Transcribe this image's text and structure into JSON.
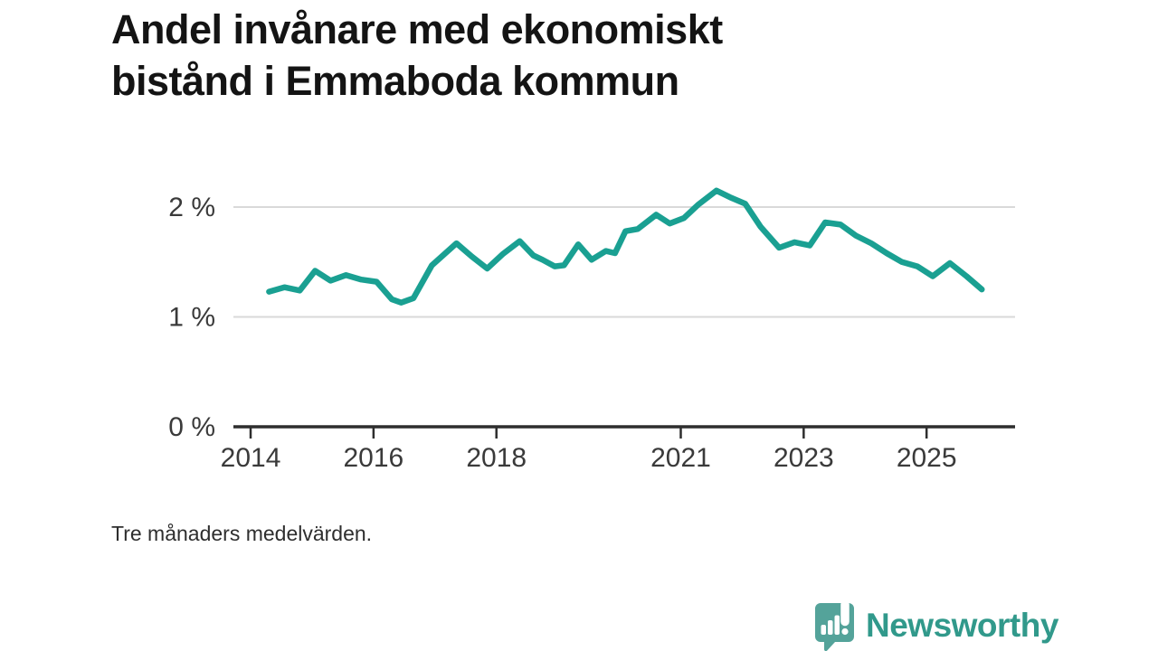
{
  "title": {
    "line1": "Andel invånare med ekonomiskt",
    "line2": "bistånd i Emmaboda kommun"
  },
  "footnote": "Tre månaders medelvärden.",
  "logo": {
    "name": "Newsworthy",
    "icon": "newsworthy-chart-bubble-icon",
    "icon_color": "#54a39a",
    "text_color": "#31998b"
  },
  "chart_data": {
    "type": "line",
    "title": "Andel invånare med ekonomiskt bistånd i Emmaboda kommun",
    "subtitle": "Tre månaders medelvärden.",
    "xlabel": "",
    "ylabel": "",
    "unit": "%",
    "grid": "horizontal gridlines at 1 % and 2 % only",
    "legend": "none",
    "x_range": [
      2013.72,
      2026.44
    ],
    "y_range": [
      0,
      2.35
    ],
    "x_ticks": [
      {
        "value": 2014,
        "label": "2014"
      },
      {
        "value": 2016,
        "label": "2016"
      },
      {
        "value": 2018,
        "label": "2018"
      },
      {
        "value": 2021,
        "label": "2021"
      },
      {
        "value": 2023,
        "label": "2023"
      },
      {
        "value": 2025,
        "label": "2025"
      }
    ],
    "y_ticks": [
      {
        "value": 0,
        "label": "0 %"
      },
      {
        "value": 1,
        "label": "1 %"
      },
      {
        "value": 2,
        "label": "2 %"
      }
    ],
    "y_gridline_values": [
      1,
      2
    ],
    "line_color": "#1aa092",
    "grid_color": "#d9d9d9",
    "axis_color": "#2e2e2e",
    "series": [
      {
        "name": "Andel invånare med ekonomiskt bistånd (%)",
        "points": [
          [
            2014.3,
            1.23
          ],
          [
            2014.55,
            1.27
          ],
          [
            2014.8,
            1.24
          ],
          [
            2015.05,
            1.42
          ],
          [
            2015.3,
            1.33
          ],
          [
            2015.55,
            1.38
          ],
          [
            2015.8,
            1.34
          ],
          [
            2016.05,
            1.32
          ],
          [
            2016.3,
            1.16
          ],
          [
            2016.45,
            1.13
          ],
          [
            2016.65,
            1.17
          ],
          [
            2016.95,
            1.47
          ],
          [
            2017.35,
            1.67
          ],
          [
            2017.6,
            1.55
          ],
          [
            2017.85,
            1.44
          ],
          [
            2018.1,
            1.57
          ],
          [
            2018.38,
            1.69
          ],
          [
            2018.6,
            1.56
          ],
          [
            2018.75,
            1.52
          ],
          [
            2018.95,
            1.46
          ],
          [
            2019.1,
            1.47
          ],
          [
            2019.33,
            1.66
          ],
          [
            2019.55,
            1.52
          ],
          [
            2019.78,
            1.6
          ],
          [
            2019.93,
            1.58
          ],
          [
            2020.1,
            1.78
          ],
          [
            2020.3,
            1.8
          ],
          [
            2020.6,
            1.93
          ],
          [
            2020.82,
            1.85
          ],
          [
            2021.05,
            1.9
          ],
          [
            2021.28,
            2.02
          ],
          [
            2021.58,
            2.15
          ],
          [
            2021.8,
            2.09
          ],
          [
            2022.05,
            2.03
          ],
          [
            2022.3,
            1.82
          ],
          [
            2022.6,
            1.63
          ],
          [
            2022.85,
            1.68
          ],
          [
            2023.1,
            1.65
          ],
          [
            2023.35,
            1.86
          ],
          [
            2023.6,
            1.84
          ],
          [
            2023.85,
            1.74
          ],
          [
            2024.1,
            1.67
          ],
          [
            2024.35,
            1.58
          ],
          [
            2024.6,
            1.5
          ],
          [
            2024.85,
            1.46
          ],
          [
            2025.1,
            1.37
          ],
          [
            2025.38,
            1.49
          ],
          [
            2025.65,
            1.37
          ],
          [
            2025.9,
            1.25
          ]
        ]
      }
    ]
  }
}
